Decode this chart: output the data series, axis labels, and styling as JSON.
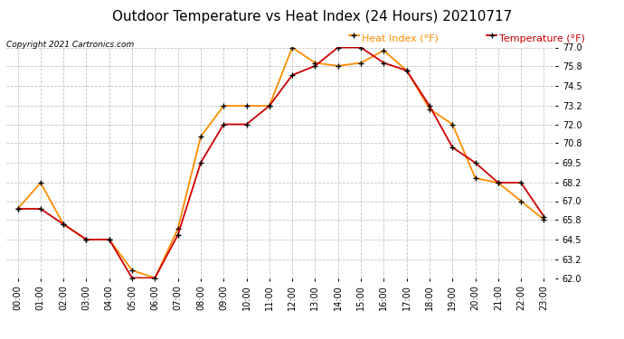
{
  "title": "Outdoor Temperature vs Heat Index (24 Hours) 20210717",
  "copyright_text": "Copyright 2021 Cartronics.com",
  "legend_heat": "Heat Index (°F)",
  "legend_temp": "Temperature (°F)",
  "hours": [
    0,
    1,
    2,
    3,
    4,
    5,
    6,
    7,
    8,
    9,
    10,
    11,
    12,
    13,
    14,
    15,
    16,
    17,
    18,
    19,
    20,
    21,
    22,
    23
  ],
  "temperature": [
    66.5,
    66.5,
    65.5,
    64.5,
    64.5,
    62.0,
    62.0,
    64.8,
    69.5,
    72.0,
    72.0,
    73.2,
    75.2,
    75.8,
    77.0,
    77.0,
    76.0,
    75.5,
    73.2,
    70.5,
    69.5,
    68.2,
    68.2,
    66.0
  ],
  "heat_index": [
    66.5,
    68.2,
    65.5,
    64.5,
    64.5,
    62.5,
    62.0,
    65.2,
    71.2,
    73.2,
    73.2,
    73.2,
    77.0,
    76.0,
    75.8,
    76.0,
    76.8,
    75.5,
    73.0,
    72.0,
    68.5,
    68.2,
    67.0,
    65.8
  ],
  "temp_color": "#cc0000",
  "heat_color": "#ff8c00",
  "marker_color": "black",
  "ylim_min": 62.0,
  "ylim_max": 77.0,
  "yticks": [
    62.0,
    63.2,
    64.5,
    65.8,
    67.0,
    68.2,
    69.5,
    70.8,
    72.0,
    73.2,
    74.5,
    75.8,
    77.0
  ],
  "bg_color": "#ffffff",
  "grid_color": "#bbbbbb",
  "title_fontsize": 11,
  "axis_fontsize": 7,
  "legend_fontsize": 8
}
